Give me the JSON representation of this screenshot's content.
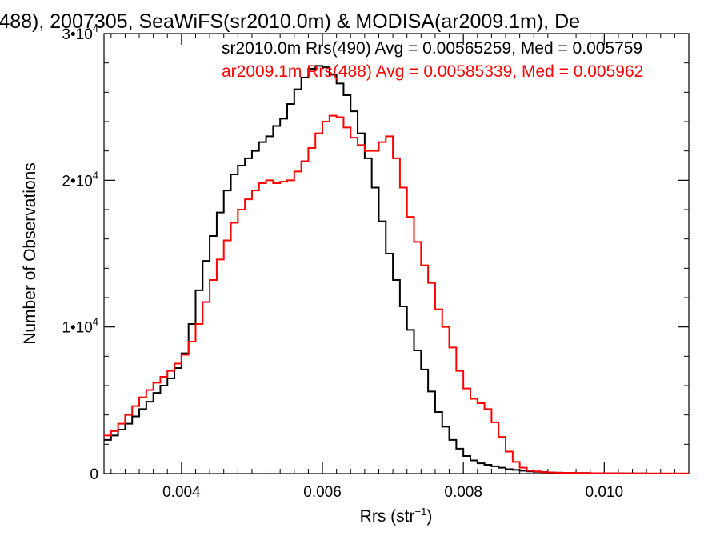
{
  "chart_data": {
    "type": "line",
    "title": "(488), 2007305, SeaWiFS(sr2010.0m) & MODISA(ar2009.1m), De",
    "xlabel": "Rrs (str",
    "xlabel_sup": "−1",
    "xlabel_close": ")",
    "ylabel": "Number of Observations",
    "xlim": [
      0.0029,
      0.0112
    ],
    "ylim": [
      0,
      30000
    ],
    "x_ticks": [
      {
        "value": 0.004,
        "label": "0.004"
      },
      {
        "value": 0.006,
        "label": "0.006"
      },
      {
        "value": 0.008,
        "label": "0.008"
      },
      {
        "value": 0.01,
        "label": "0.010"
      }
    ],
    "y_ticks": [
      {
        "value": 0,
        "base": "0",
        "exp": ""
      },
      {
        "value": 10000,
        "base": "1•10",
        "exp": "4"
      },
      {
        "value": 20000,
        "base": "2•10",
        "exp": "4"
      },
      {
        "value": 30000,
        "base": "3•10",
        "exp": "4"
      }
    ],
    "annotations": [
      {
        "text": "sr2010.0m Rrs(490) Avg = 0.00565259, Med = 0.005759",
        "color": "#000000"
      },
      {
        "text": "ar2009.1m Rrs(488) Avg = 0.00585339, Med = 0.005962",
        "color": "#ff0000"
      }
    ],
    "series": [
      {
        "color": "#000000",
        "x": [
          0.0029,
          0.003,
          0.0031,
          0.0032,
          0.0033,
          0.0034,
          0.0035,
          0.0036,
          0.0037,
          0.0038,
          0.0039,
          0.004,
          0.0041,
          0.0042,
          0.0043,
          0.0044,
          0.0045,
          0.0046,
          0.0047,
          0.0048,
          0.0049,
          0.005,
          0.0051,
          0.0052,
          0.0053,
          0.0054,
          0.0055,
          0.0056,
          0.0057,
          0.0058,
          0.0059,
          0.006,
          0.0061,
          0.0062,
          0.0063,
          0.0064,
          0.0065,
          0.0066,
          0.0067,
          0.0068,
          0.0069,
          0.007,
          0.0071,
          0.0072,
          0.0073,
          0.0074,
          0.0075,
          0.0076,
          0.0077,
          0.0078,
          0.0079,
          0.008,
          0.0081,
          0.0082,
          0.0083,
          0.0084,
          0.0085,
          0.0086,
          0.0087,
          0.0088,
          0.0089,
          0.009,
          0.0091,
          0.0092,
          0.0093,
          0.0094,
          0.0096,
          0.0098,
          0.01,
          0.0103,
          0.0106,
          0.0109,
          0.0112
        ],
        "y": [
          2300,
          2600,
          3000,
          3400,
          3900,
          4400,
          4900,
          5500,
          6000,
          6500,
          7200,
          8200,
          10200,
          12500,
          14500,
          16200,
          17800,
          19300,
          20400,
          21000,
          21500,
          22000,
          22600,
          23000,
          23700,
          24200,
          25200,
          26200,
          27000,
          27600,
          27800,
          27700,
          27200,
          26600,
          25800,
          24700,
          23200,
          21500,
          19500,
          17200,
          15000,
          13200,
          11400,
          9800,
          8400,
          7100,
          5600,
          4200,
          3200,
          2300,
          1700,
          1200,
          900,
          700,
          600,
          500,
          400,
          300,
          250,
          200,
          150,
          120,
          100,
          80,
          60,
          50,
          40,
          30,
          20,
          15,
          10,
          5,
          5
        ]
      },
      {
        "color": "#ff0000",
        "x": [
          0.0029,
          0.003,
          0.0031,
          0.0032,
          0.0033,
          0.0034,
          0.0035,
          0.0036,
          0.0037,
          0.0038,
          0.0039,
          0.004,
          0.0041,
          0.0042,
          0.0043,
          0.0044,
          0.0045,
          0.0046,
          0.0047,
          0.0048,
          0.0049,
          0.005,
          0.0051,
          0.0052,
          0.0053,
          0.0054,
          0.0055,
          0.0056,
          0.0057,
          0.0058,
          0.0059,
          0.006,
          0.0061,
          0.0062,
          0.0063,
          0.0064,
          0.0065,
          0.0066,
          0.0067,
          0.0068,
          0.0069,
          0.007,
          0.0071,
          0.0072,
          0.0073,
          0.0074,
          0.0075,
          0.0076,
          0.0077,
          0.0078,
          0.0079,
          0.008,
          0.0081,
          0.0082,
          0.0083,
          0.0084,
          0.0085,
          0.0086,
          0.0087,
          0.0088,
          0.0089,
          0.009,
          0.0091,
          0.0092,
          0.0093,
          0.0094,
          0.0096,
          0.0098,
          0.01,
          0.0103,
          0.0106,
          0.0109,
          0.0112
        ],
        "y": [
          2600,
          2900,
          3400,
          4000,
          4600,
          5200,
          5700,
          6200,
          6600,
          7000,
          7500,
          8100,
          9000,
          10200,
          11700,
          13200,
          14600,
          15900,
          17100,
          18000,
          18700,
          19300,
          19800,
          20000,
          19800,
          19900,
          20000,
          20600,
          21300,
          22200,
          23200,
          24000,
          24400,
          24300,
          23600,
          22900,
          22400,
          22000,
          22000,
          22600,
          23000,
          21500,
          19500,
          17500,
          15800,
          14200,
          13000,
          11200,
          10000,
          8600,
          7000,
          5800,
          5100,
          4800,
          4400,
          3500,
          2500,
          1500,
          800,
          400,
          200,
          150,
          100,
          80,
          60,
          50,
          40,
          30,
          20,
          15,
          10,
          5,
          5
        ]
      }
    ]
  }
}
